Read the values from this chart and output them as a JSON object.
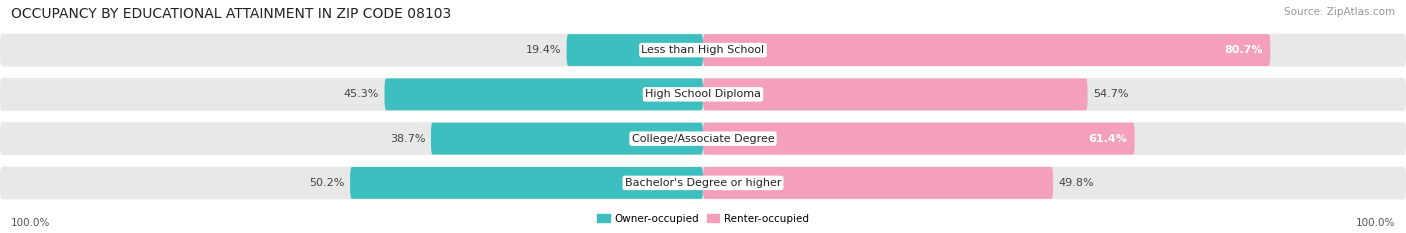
{
  "title": "OCCUPANCY BY EDUCATIONAL ATTAINMENT IN ZIP CODE 08103",
  "source": "Source: ZipAtlas.com",
  "categories": [
    "Less than High School",
    "High School Diploma",
    "College/Associate Degree",
    "Bachelor's Degree or higher"
  ],
  "owner_values": [
    19.4,
    45.3,
    38.7,
    50.2
  ],
  "renter_values": [
    80.7,
    54.7,
    61.4,
    49.8
  ],
  "owner_color": "#3dbfbf",
  "renter_color": "#f5a0ba",
  "row_bg_color": "#e8e8e8",
  "fig_bg_color": "#ffffff",
  "title_fontsize": 10,
  "label_fontsize": 8,
  "tick_fontsize": 7.5,
  "source_fontsize": 7.5,
  "bar_value_fontsize": 8
}
